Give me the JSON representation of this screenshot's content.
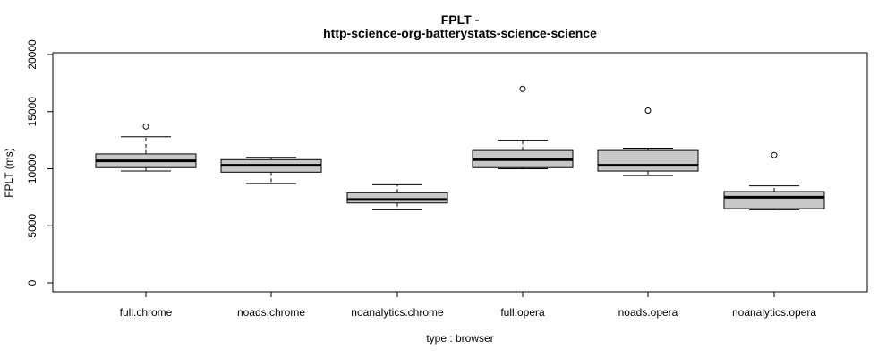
{
  "chart_data": {
    "type": "boxplot",
    "title_line1": "FPLT -",
    "title_line2": "http-science-org-batterystats-science-science",
    "xlabel": "type : browser",
    "ylabel": "FPLT (ms)",
    "ylim": [
      0,
      20000
    ],
    "yticks": [
      0,
      5000,
      10000,
      15000,
      20000
    ],
    "ytick_labels": [
      "0",
      "5000",
      "10000",
      "15000",
      "20000"
    ],
    "grid": false,
    "categories": [
      "full.chrome",
      "noads.chrome",
      "noanalytics.chrome",
      "full.opera",
      "noads.opera",
      "noanalytics.opera"
    ],
    "boxes": [
      {
        "category": "full.chrome",
        "whisker_low": 9800,
        "q1": 10100,
        "median": 10700,
        "q3": 11300,
        "whisker_high": 12800,
        "outliers": [
          13700
        ]
      },
      {
        "category": "noads.chrome",
        "whisker_low": 8700,
        "q1": 9700,
        "median": 10300,
        "q3": 10800,
        "whisker_high": 11000,
        "outliers": []
      },
      {
        "category": "noanalytics.chrome",
        "whisker_low": 6400,
        "q1": 7000,
        "median": 7300,
        "q3": 7900,
        "whisker_high": 8600,
        "outliers": []
      },
      {
        "category": "full.opera",
        "whisker_low": 10000,
        "q1": 10100,
        "median": 10800,
        "q3": 11600,
        "whisker_high": 12500,
        "outliers": [
          17000
        ]
      },
      {
        "category": "noads.opera",
        "whisker_low": 9400,
        "q1": 9800,
        "median": 10300,
        "q3": 11600,
        "whisker_high": 11800,
        "outliers": [
          15100
        ]
      },
      {
        "category": "noanalytics.opera",
        "whisker_low": 6400,
        "q1": 6500,
        "median": 7500,
        "q3": 8000,
        "whisker_high": 8500,
        "outliers": [
          11200
        ]
      }
    ]
  }
}
